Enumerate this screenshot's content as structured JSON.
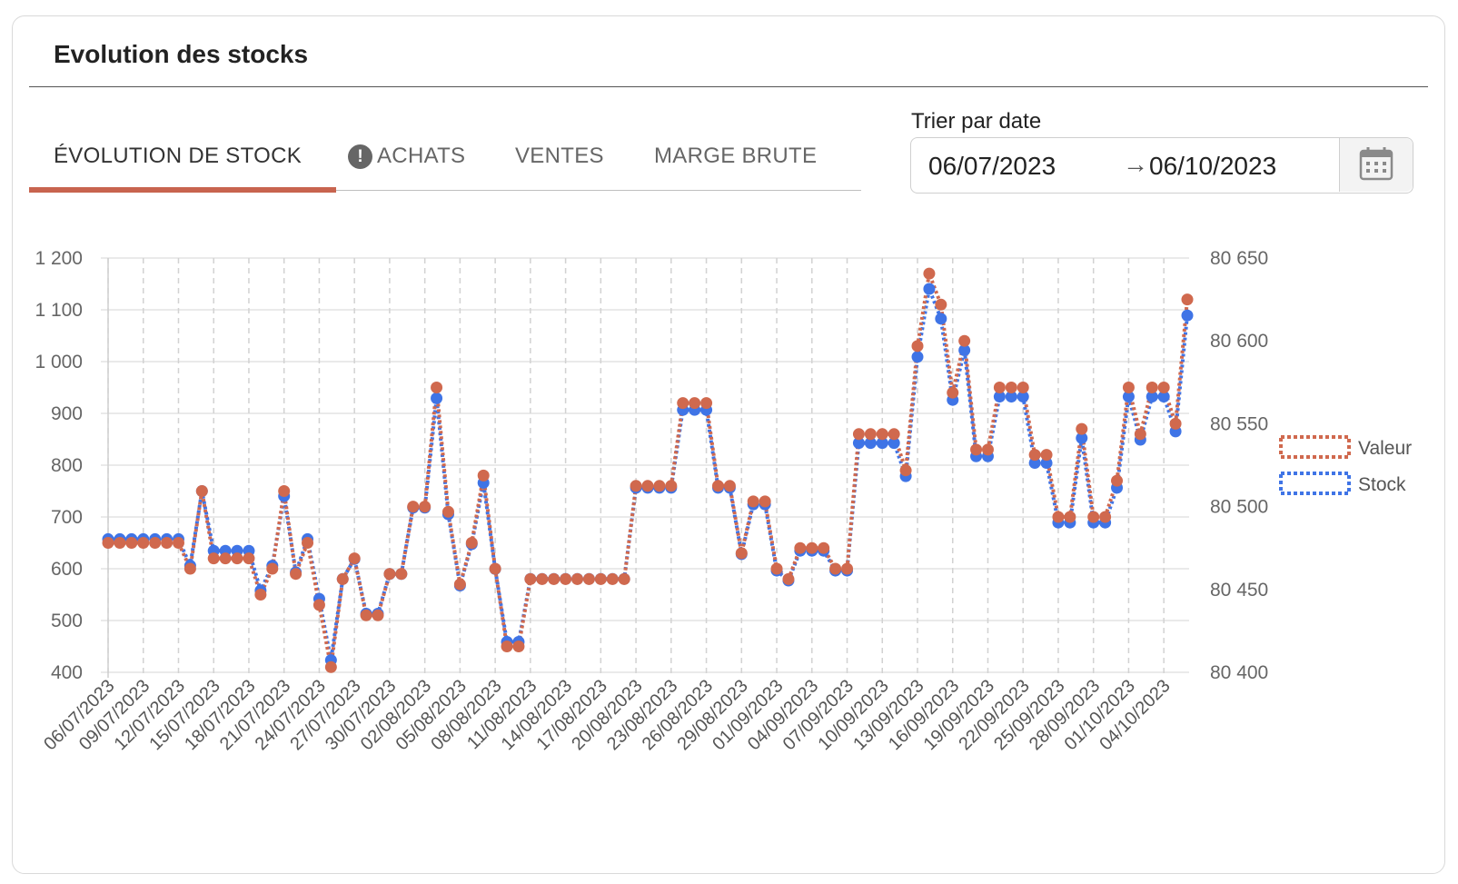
{
  "card": {
    "title": "Evolution des stocks"
  },
  "tabs": [
    {
      "label": "ÉVOLUTION DE STOCK",
      "active": true
    },
    {
      "label": "ACHATS",
      "active": false
    },
    {
      "label": "VENTES",
      "active": false
    },
    {
      "label": "MARGE BRUTE",
      "active": false
    }
  ],
  "info_icon": {
    "glyph": "!",
    "icon": "exclamation-circle-icon"
  },
  "date_filter": {
    "label": "Trier par date",
    "start": "06/07/2023",
    "arrow": "→",
    "end": "06/10/2023",
    "icon": "calendar-icon"
  },
  "colors": {
    "accent": "#c8644f",
    "valeur": "#d0694e",
    "stock": "#3f74e6"
  },
  "chart_data": {
    "type": "line",
    "legend_position": "right",
    "grid": true,
    "x_tick_labels": [
      "06/07/2023",
      "09/07/2023",
      "12/07/2023",
      "15/07/2023",
      "18/07/2023",
      "21/07/2023",
      "24/07/2023",
      "27/07/2023",
      "30/07/2023",
      "02/08/2023",
      "05/08/2023",
      "08/08/2023",
      "11/08/2023",
      "14/08/2023",
      "17/08/2023",
      "20/08/2023",
      "23/08/2023",
      "26/08/2023",
      "29/08/2023",
      "01/09/2023",
      "04/09/2023",
      "07/09/2023",
      "10/09/2023",
      "13/09/2023",
      "16/09/2023",
      "19/09/2023",
      "22/09/2023",
      "25/09/2023",
      "28/09/2023",
      "01/10/2023",
      "04/10/2023"
    ],
    "y_left": {
      "min": 400,
      "max": 1200,
      "ticks": [
        "400",
        "500",
        "600",
        "700",
        "800",
        "900",
        "1 000",
        "1 100",
        "1 200"
      ]
    },
    "y_right": {
      "min": 80400,
      "max": 80650,
      "ticks": [
        "80 400",
        "80 450",
        "80 500",
        "80 550",
        "80 600",
        "80 650"
      ]
    },
    "series": [
      {
        "name": "Valeur",
        "axis": "left",
        "values": [
          650,
          650,
          650,
          650,
          650,
          650,
          650,
          600,
          750,
          620,
          620,
          620,
          620,
          550,
          600,
          750,
          590,
          650,
          530,
          410,
          580,
          620,
          510,
          510,
          590,
          590,
          720,
          720,
          950,
          710,
          570,
          650,
          780,
          600,
          450,
          450,
          580,
          580,
          580,
          580,
          580,
          580,
          580,
          580,
          580,
          760,
          760,
          760,
          760,
          920,
          920,
          920,
          760,
          760,
          630,
          730,
          730,
          600,
          580,
          640,
          640,
          640,
          600,
          600,
          860,
          860,
          860,
          860,
          790,
          1030,
          1170,
          1110,
          940,
          1040,
          830,
          830,
          950,
          950,
          950,
          820,
          820,
          700,
          700,
          870,
          700,
          700,
          770,
          950,
          860,
          950,
          950,
          880,
          1120
        ]
      },
      {
        "name": "Stock",
        "axis": "right",
        "values": [
          80482,
          80482,
          80482,
          80482,
          80482,
          80482,
          80482,
          80466,
          80511,
          80475,
          80475,
          80475,
          80475,
          80451,
          80466,
          80508,
          80462,
          80482,
          80446,
          80409,
          80458,
          80470,
          80437,
          80437,
          80461,
          80461,
          80501,
          80501,
          80567,
          80497,
          80454,
          80479,
          80516,
          80464,
          80420,
          80420,
          80458,
          80458,
          80458,
          80458,
          80458,
          80458,
          80458,
          80458,
          80458,
          80513,
          80513,
          80513,
          80513,
          80560,
          80560,
          80560,
          80513,
          80513,
          80473,
          80503,
          80503,
          80463,
          80457,
          80475,
          80475,
          80475,
          80463,
          80463,
          80540,
          80540,
          80540,
          80540,
          80520,
          80592,
          80633,
          80615,
          80566,
          80596,
          80532,
          80532,
          80568,
          80568,
          80568,
          80528,
          80528,
          80492,
          80492,
          80543,
          80492,
          80492,
          80513,
          80568,
          80542,
          80568,
          80568,
          80547,
          80617
        ]
      }
    ]
  }
}
